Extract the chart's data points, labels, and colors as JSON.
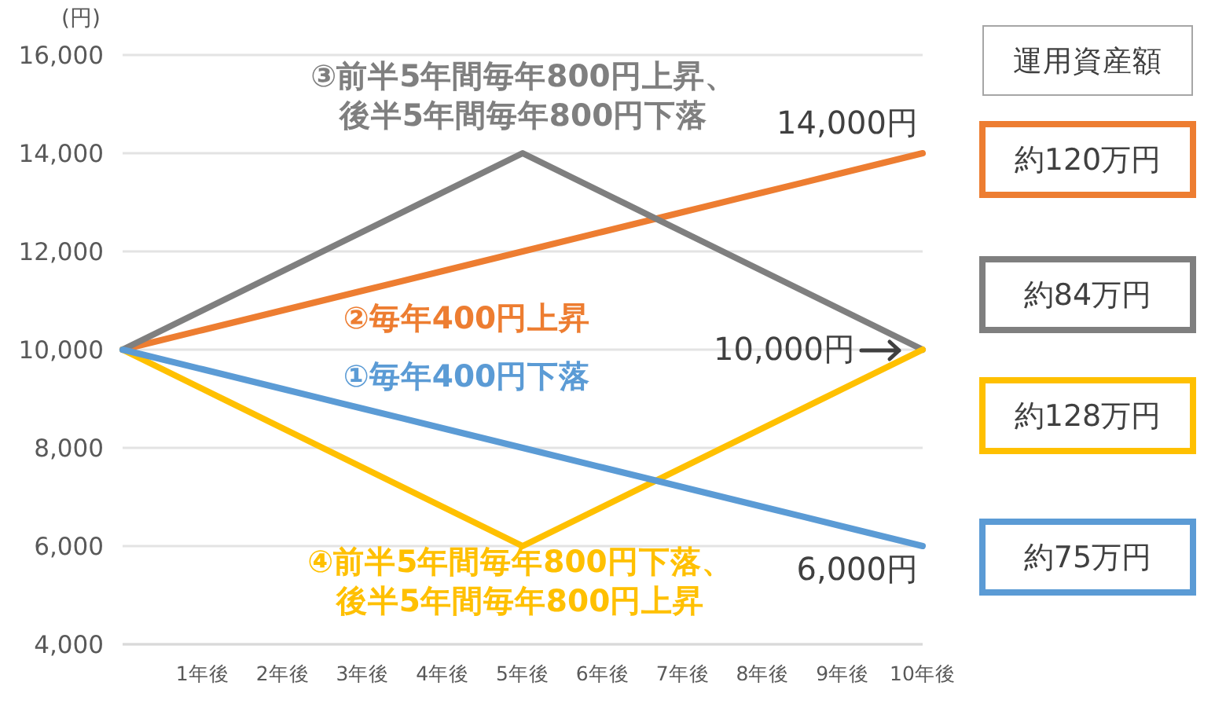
{
  "chart_data": {
    "type": "line",
    "ylabel": "(円)",
    "categories": [
      null,
      "1年後",
      "2年後",
      "3年後",
      "4年後",
      "5年後",
      "6年後",
      "7年後",
      "8年後",
      "9年後",
      "10年後"
    ],
    "series": [
      {
        "name": "②毎年400円上昇",
        "color": "#ed7d31",
        "values": [
          10000,
          10400,
          10800,
          11200,
          11600,
          12000,
          12400,
          12800,
          13200,
          13600,
          14000
        ]
      },
      {
        "name": "③前半5年間毎年800円上昇、後半5年間毎年800円下落",
        "color": "#7f7f7f",
        "values": [
          10000,
          10800,
          11600,
          12400,
          13200,
          14000,
          13200,
          12400,
          11600,
          10800,
          10000
        ]
      },
      {
        "name": "④前半5年間毎年800円下落、後半5年間毎年800円上昇",
        "color": "#ffc000",
        "values": [
          10000,
          9200,
          8400,
          7600,
          6800,
          6000,
          6800,
          7600,
          8400,
          9200,
          10000
        ]
      },
      {
        "name": "①毎年400円下落",
        "color": "#5b9bd5",
        "values": [
          10000,
          9600,
          9200,
          8800,
          8400,
          8000,
          7600,
          7200,
          6800,
          6400,
          6000
        ]
      }
    ],
    "ylim": [
      4000,
      16000
    ],
    "yticks": [
      {
        "value": 4000,
        "label": "4,000"
      },
      {
        "value": 6000,
        "label": "6,000"
      },
      {
        "value": 8000,
        "label": "8,000"
      },
      {
        "value": 10000,
        "label": "10,000"
      },
      {
        "value": 12000,
        "label": "12,000"
      },
      {
        "value": 14000,
        "label": "14,000"
      },
      {
        "value": 16000,
        "label": "16,000"
      }
    ],
    "grid": "y",
    "annotations": [
      "運用資産額",
      "約120万円",
      "約84万円",
      "約128万円",
      "約75万円",
      {
        "text": "14,000円",
        "x": "10年後",
        "y": 14000
      },
      {
        "text": "10,000円",
        "x": "10年後",
        "y": 10000
      },
      {
        "text": "6,000円",
        "x": "10年後",
        "y": 6000
      }
    ]
  }
}
